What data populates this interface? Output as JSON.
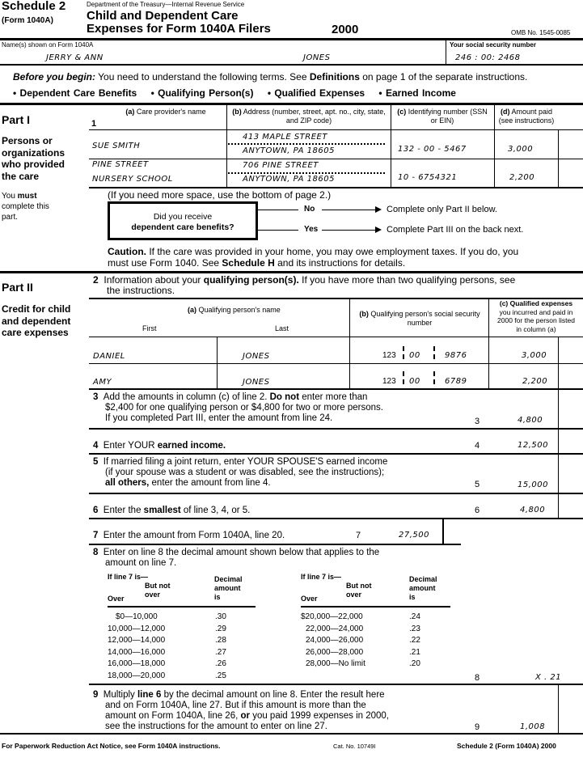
{
  "header": {
    "schedule": "Schedule 2",
    "form": "(Form 1040A)",
    "dept": "Department of the Treasury—Internal Revenue Service",
    "title1": "Child and Dependent Care",
    "title2": "Expenses for Form 1040A Filers",
    "year": "2000",
    "omb": "OMB No. 1545-0085"
  },
  "names": {
    "label": "Name(s) shown on Form 1040A",
    "first": "JERRY & ANN",
    "last": "JONES",
    "ssn_label": "Your social security number",
    "ssn": "246 : 00: 2468"
  },
  "intro": {
    "lead": "Before you begin:",
    "text1": " You need to understand the following terms. See ",
    "defs": "Definitions",
    "text2": " on page 1 of the separate instructions.",
    "terms": [
      "• Dependent Care Benefits",
      "• Qualifying Person(s)",
      "• Qualified Expenses",
      "• Earned Income"
    ]
  },
  "part1": {
    "title": "Part I",
    "subtitle": [
      "Persons or",
      "organizations",
      "who provided",
      "the care"
    ],
    "must": [
      "You ",
      "must",
      "complete this",
      "part."
    ],
    "line": "1",
    "cols": [
      {
        "letter": "(a)",
        "text": " Care provider's name"
      },
      {
        "letter": "(b)",
        "text": " Address (number, street, apt. no., city, state, and ZIP code)"
      },
      {
        "letter": "(c)",
        "text": " Identifying number (SSN or EIN)"
      },
      {
        "letter": "(d)",
        "text": " Amount paid (see instructions)"
      }
    ],
    "rows": [
      {
        "name1": "",
        "name2": "SUE SMITH",
        "addr1": "413 MAPLE STREET",
        "addr2": "ANYTOWN, PA 18605",
        "id": "132 - 00 - 5467",
        "amount": "3,000"
      },
      {
        "name1": "PINE STREET",
        "name2": "NURSERY SCHOOL",
        "addr1": "706 PINE STREET",
        "addr2": "ANYTOWN, PA 18605",
        "id": "10 - 6754321",
        "amount": "2,200"
      }
    ],
    "more_space": "(If you need more space, use the bottom of page 2.)",
    "question1": "Did you receive",
    "question2": "dependent care benefits?",
    "no": "No",
    "no_text": "Complete only Part II below.",
    "yes": "Yes",
    "yes_text": "Complete Part III on the back next.",
    "caution_label": "Caution.",
    "caution1": " If the care was provided in your home, you may owe employment taxes. If you do, you",
    "caution2": "must use Form 1040. See ",
    "caution_bold": "Schedule H",
    "caution3": " and its instructions for details."
  },
  "part2": {
    "title": "Part II",
    "subtitle": [
      "Credit for child",
      "and dependent",
      "care expenses"
    ],
    "line2": {
      "num": "2",
      "t1": "Information about your ",
      "b": "qualifying person(s).",
      "t2": " If you have more than two qualifying persons, see",
      "t3": "the instructions."
    },
    "cols": {
      "a": "(a)",
      "a_text": " Qualifying person's name",
      "first": "First",
      "last": "Last",
      "b": "(b)",
      "b_text": " Qualifying person's social security number",
      "c_bold": "(c) Qualified expenses",
      "c_text": "you incurred and paid in 2000 for the person listed in column (a)"
    },
    "persons": [
      {
        "first": "DANIEL",
        "last": "JONES",
        "ssn1": "123",
        "ssn2": "00",
        "ssn3": "9876",
        "amount": "3,000"
      },
      {
        "first": "AMY",
        "last": "JONES",
        "ssn1": "123",
        "ssn2": "00",
        "ssn3": "6789",
        "amount": "2,200"
      }
    ],
    "line3": {
      "num": "3",
      "t1": "Add the amounts in column (c) of line 2. ",
      "b": "Do not",
      "t2": " enter more than",
      "t3": "$2,400 for one qualifying person or $4,800 for two or more persons.",
      "t4": "If you completed Part III, enter the amount from line 24.",
      "box": "3",
      "amount": "4,800"
    },
    "line4": {
      "num": "4",
      "t1": "Enter YOUR ",
      "b": "earned income.",
      "box": "4",
      "amount": "12,500"
    },
    "line5": {
      "num": "5",
      "t1": "If married filing a joint return, enter YOUR SPOUSE'S earned income",
      "t2": "(if your spouse was a student or was disabled, see the instructions);",
      "b": "all others,",
      "t3": " enter the amount from line 4.",
      "box": "5",
      "amount": "15,000"
    },
    "line6": {
      "num": "6",
      "t1": "Enter the ",
      "b": "smallest",
      "t2": " of line 3, 4, or 5.",
      "box": "6",
      "amount": "4,800"
    },
    "line7": {
      "num": "7",
      "t1": "Enter the amount from Form 1040A, line 20.",
      "box": "7",
      "amount": "27,500"
    },
    "line8": {
      "num": "8",
      "t1": "Enter on line 8 the decimal amount shown below that applies to the",
      "t2": "amount on line 7.",
      "box": "8",
      "amount": "X . 21",
      "table_head": {
        "if": "If line 7 is—",
        "over": "Over",
        "but": "But not",
        "but2": "over",
        "dec1": "Decimal",
        "dec2": "amount",
        "dec3": "is"
      },
      "left": [
        {
          "range": "$0—10,000",
          "dec": ".30"
        },
        {
          "range": "10,000—12,000",
          "dec": ".29"
        },
        {
          "range": "12,000—14,000",
          "dec": ".28"
        },
        {
          "range": "14,000—16,000",
          "dec": ".27"
        },
        {
          "range": "16,000—18,000",
          "dec": ".26"
        },
        {
          "range": "18,000—20,000",
          "dec": ".25"
        }
      ],
      "right": [
        {
          "range": "$20,000—22,000",
          "dec": ".24"
        },
        {
          "range": "22,000—24,000",
          "dec": ".23"
        },
        {
          "range": "24,000—26,000",
          "dec": ".22"
        },
        {
          "range": "26,000—28,000",
          "dec": ".21"
        },
        {
          "range": "28,000—No limit",
          "dec": ".20"
        }
      ]
    },
    "line9": {
      "num": "9",
      "t1": "Multiply ",
      "b": "line 6",
      "t2": " by the decimal amount on line 8. Enter the result here",
      "t3": "and on Form 1040A, line 27. But if this amount is more than the",
      "t4": "amount on Form 1040A, line 26, ",
      "b2": "or",
      "t5": " you paid 1999 expenses in 2000,",
      "t6": "see the instructions for the amount to enter on line 27.",
      "box": "9",
      "amount": "1,008"
    }
  },
  "footer": {
    "left": "For Paperwork Reduction Act Notice, see Form 1040A instructions.",
    "cat": "Cat. No. 10749I",
    "right": "Schedule 2 (Form 1040A) 2000"
  }
}
